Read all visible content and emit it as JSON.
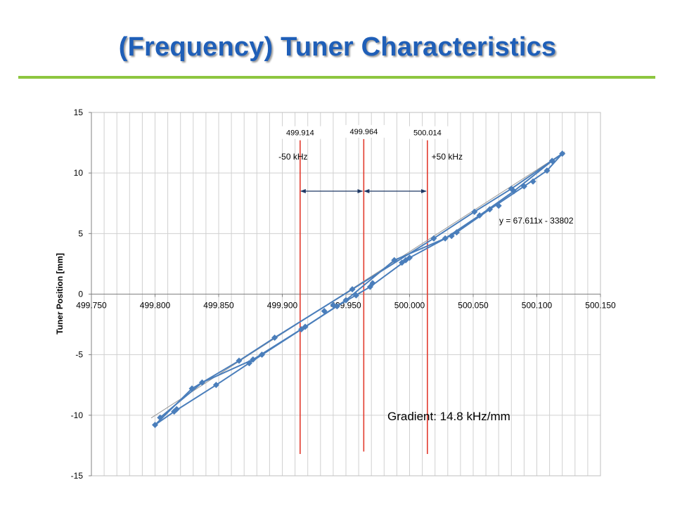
{
  "slide": {
    "title": "(Frequency) Tuner Characteristics"
  },
  "colors": {
    "title": "#1f5fb8",
    "rule": "#8dc63f",
    "series": "#4a7ebb",
    "marker_lines": "#e23a2e",
    "arrows": "#1f3864",
    "grid": "#d0d0d0"
  },
  "chart_data": {
    "type": "scatter",
    "ylabel": "Tuner Position [mm]",
    "xlabel": "",
    "xlim": [
      499.75,
      500.15
    ],
    "ylim": [
      -15,
      15
    ],
    "x_ticks": [
      "499.750",
      "499.800",
      "499.850",
      "499.900",
      "499.950",
      "500.000",
      "500.050",
      "500.100",
      "500.150"
    ],
    "y_ticks": [
      "15",
      "10",
      "5",
      "0",
      "-5",
      "-10",
      "-15"
    ],
    "grid": true,
    "series": [
      {
        "values": [
          [
            499.8,
            -10.8
          ],
          [
            499.804,
            -10.2
          ],
          [
            499.815,
            -9.7
          ],
          [
            499.817,
            -9.5
          ],
          [
            499.829,
            -7.8
          ],
          [
            499.837,
            -7.3
          ],
          [
            499.848,
            -7.5
          ],
          [
            499.866,
            -5.5
          ],
          [
            499.874,
            -5.7
          ],
          [
            499.877,
            -5.4
          ],
          [
            499.884,
            -5.0
          ],
          [
            499.894,
            -3.6
          ],
          [
            499.915,
            -2.9
          ],
          [
            499.918,
            -2.7
          ],
          [
            499.933,
            -1.4
          ],
          [
            499.94,
            -0.9
          ],
          [
            499.943,
            -1.0
          ],
          [
            499.95,
            -0.5
          ],
          [
            499.955,
            0.4
          ],
          [
            499.958,
            -0.1
          ],
          [
            499.969,
            0.6
          ],
          [
            499.971,
            0.9
          ],
          [
            499.988,
            2.8
          ],
          [
            499.994,
            2.6
          ],
          [
            499.997,
            2.8
          ],
          [
            500.0,
            3.0
          ],
          [
            500.019,
            4.6
          ],
          [
            500.028,
            4.6
          ],
          [
            500.033,
            4.8
          ],
          [
            500.037,
            5.1
          ],
          [
            500.051,
            6.8
          ],
          [
            500.055,
            6.5
          ],
          [
            500.063,
            7.0
          ],
          [
            500.07,
            7.3
          ],
          [
            500.08,
            8.7
          ],
          [
            500.082,
            8.5
          ],
          [
            500.09,
            8.9
          ],
          [
            500.097,
            9.3
          ],
          [
            500.108,
            10.2
          ],
          [
            500.112,
            11.0
          ],
          [
            500.12,
            11.6
          ]
        ],
        "paths": [
          [
            [
              499.8,
              -10.8
            ],
            [
              499.829,
              -7.8
            ],
            [
              499.866,
              -5.5
            ],
            [
              499.894,
              -3.6
            ],
            [
              499.955,
              0.4
            ],
            [
              500.019,
              4.6
            ],
            [
              500.051,
              6.8
            ],
            [
              500.08,
              8.7
            ],
            [
              500.12,
              11.6
            ]
          ],
          [
            [
              500.12,
              11.6
            ],
            [
              500.108,
              10.2
            ],
            [
              500.09,
              8.9
            ],
            [
              500.063,
              7.0
            ],
            [
              500.037,
              5.1
            ],
            [
              500.0,
              3.0
            ],
            [
              499.969,
              0.6
            ],
            [
              499.943,
              -1.0
            ],
            [
              499.915,
              -2.9
            ],
            [
              499.874,
              -5.7
            ],
            [
              499.848,
              -7.5
            ],
            [
              499.815,
              -9.7
            ],
            [
              499.8,
              -10.8
            ]
          ],
          [
            [
              499.804,
              -10.2
            ],
            [
              499.837,
              -7.3
            ],
            [
              499.877,
              -5.4
            ],
            [
              499.918,
              -2.7
            ],
            [
              499.95,
              -0.5
            ],
            [
              499.988,
              2.8
            ],
            [
              500.028,
              4.6
            ],
            [
              500.055,
              6.5
            ],
            [
              500.082,
              8.5
            ],
            [
              500.112,
              11.0
            ],
            [
              500.12,
              11.6
            ]
          ]
        ]
      }
    ],
    "trendline": {
      "equation": "y = 67.611x - 33802",
      "slope": 67.611,
      "intercept": -33802,
      "x_range": [
        499.797,
        500.122
      ]
    },
    "markers": [
      {
        "x": 499.914,
        "label": "499.914",
        "y_range": [
          -13.2,
          12.7
        ]
      },
      {
        "x": 499.964,
        "label": "499.964",
        "y_range": [
          -13.0,
          12.8
        ]
      },
      {
        "x": 500.014,
        "label": "500.014",
        "y_range": [
          -13.2,
          12.7
        ]
      }
    ],
    "spans": [
      {
        "from": 499.914,
        "to": 499.964,
        "label": "-50 kHz",
        "y": 8.5
      },
      {
        "from": 499.964,
        "to": 500.014,
        "label": "+50 kHz",
        "y": 8.5
      }
    ],
    "annotation": "Gradient: 14.8 kHz/mm"
  }
}
